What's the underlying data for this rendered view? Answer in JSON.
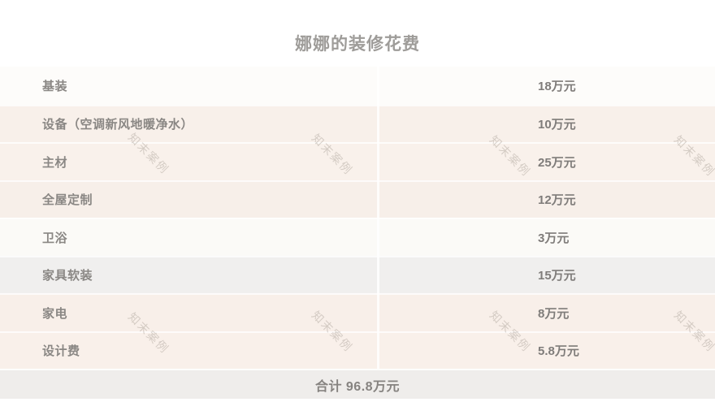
{
  "title": "娜娜的装修花费",
  "watermark": {
    "text": "知末案例",
    "color": "#b1a89f"
  },
  "table": {
    "rows": [
      {
        "label": "基装",
        "value": "18万元",
        "bg": "#fdfcfa"
      },
      {
        "label": "设备（空调新风地暖净水）",
        "value": "10万元",
        "bg": "#f8f0ea"
      },
      {
        "label": "主材",
        "value": "25万元",
        "bg": "#f9f1eb"
      },
      {
        "label": "全屋定制",
        "value": "12万元",
        "bg": "#f7efe9"
      },
      {
        "label": "卫浴",
        "value": "3万元",
        "bg": "#fbfaf7"
      },
      {
        "label": "家具软装",
        "value": "15万元",
        "bg": "#f0efee"
      },
      {
        "label": "家电",
        "value": "8万元",
        "bg": "#f8efe9"
      },
      {
        "label": "设计费",
        "value": "5.8万元",
        "bg": "#f9f0ea"
      }
    ],
    "total_text": "合计 96.8万元",
    "total_bg": "#efedeb"
  },
  "chart_data": {
    "type": "table",
    "title": "娜娜的装修花费",
    "rows": [
      [
        "基装",
        "18万元"
      ],
      [
        "设备（空调新风地暖净水）",
        "10万元"
      ],
      [
        "主材",
        "25万元"
      ],
      [
        "全屋定制",
        "12万元"
      ],
      [
        "卫浴",
        "3万元"
      ],
      [
        "家具软装",
        "15万元"
      ],
      [
        "家电",
        "8万元"
      ],
      [
        "设计费",
        "5.8万元"
      ]
    ],
    "values_wanyuan": [
      18,
      10,
      25,
      12,
      3,
      15,
      8,
      5.8
    ],
    "total_label": "合计",
    "total_wanyuan": 96.8,
    "unit": "万元",
    "layout": {
      "zebra_colors": [
        "#fdfcfa",
        "#f8f0ea",
        "#f0efee"
      ],
      "grid": "faint-white-separators"
    }
  }
}
